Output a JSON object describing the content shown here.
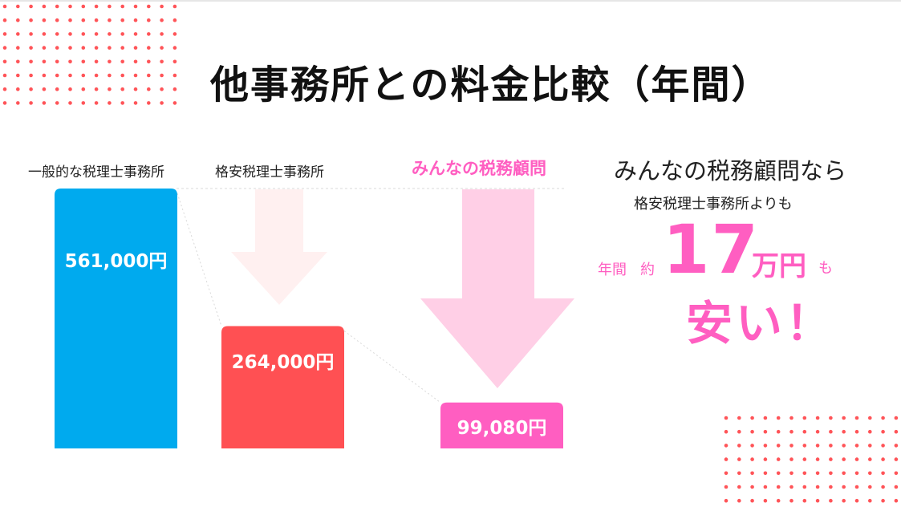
{
  "title": "他事務所との料金比較（年間）",
  "chart_data": {
    "type": "bar",
    "categories": [
      "一般的な税理士事務所",
      "格安税理士事務所",
      "みんなの税務顧問"
    ],
    "values": [
      561000,
      264000,
      99080
    ],
    "value_labels": [
      "561,000円",
      "264,000円",
      "99,080円"
    ],
    "colors": [
      "#00aaee",
      "#ff5053",
      "#ff5ec1"
    ],
    "title": "他事務所との料金比較（年間）",
    "xlabel": "",
    "ylabel": "",
    "grid": false,
    "legend": "none"
  },
  "summary": {
    "headline": "みんなの税務顧問なら",
    "subline": "格安税理士事務所よりも",
    "prefix1": "年間",
    "prefix2": "約",
    "amount": "17",
    "unit": "万円",
    "suffix": "も",
    "conclusion": "安い！"
  },
  "colors": {
    "accent": "#ff5ec1",
    "dots": "#ff5458",
    "blue": "#00aaee",
    "red": "#ff5053"
  }
}
